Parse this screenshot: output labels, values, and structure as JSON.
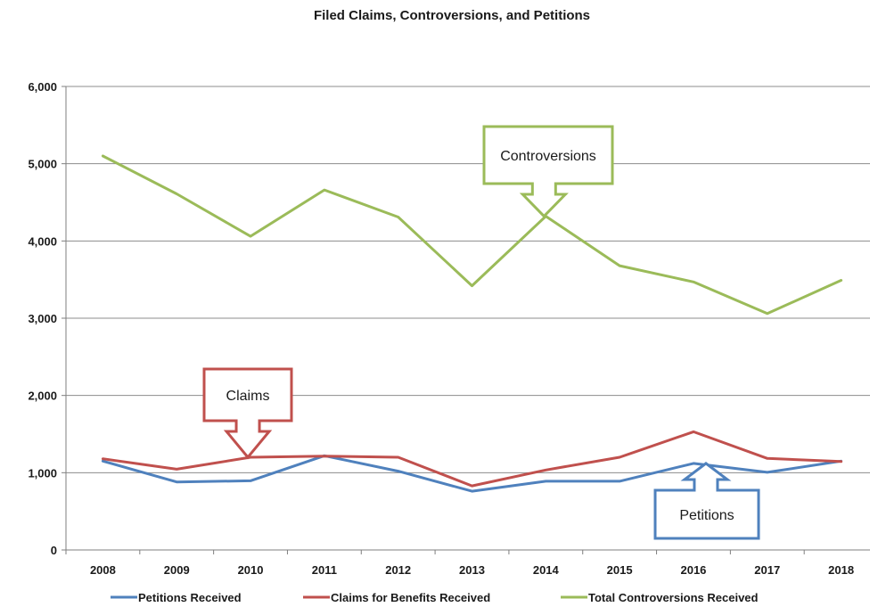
{
  "chart_data": {
    "type": "line",
    "title": "Filed Claims, Controversions, and Petitions",
    "xlabel": "",
    "ylabel": "",
    "ylim": [
      0,
      6000
    ],
    "yticks": [
      "0",
      "1,000",
      "2,000",
      "3,000",
      "4,000",
      "5,000",
      "6,000"
    ],
    "categories": [
      "2008",
      "2009",
      "2010",
      "2011",
      "2012",
      "2013",
      "2014",
      "2015",
      "2016",
      "2017",
      "2018"
    ],
    "grid": true,
    "legend_position": "bottom",
    "series": [
      {
        "name": "Petitions Received",
        "color": "#4f81bd",
        "values": [
          1150,
          880,
          895,
          1220,
          1020,
          760,
          890,
          890,
          1120,
          1005,
          1150
        ]
      },
      {
        "name": "Claims for Benefits Received",
        "color": "#c0504d",
        "values": [
          1180,
          1045,
          1200,
          1215,
          1200,
          830,
          1035,
          1200,
          1530,
          1185,
          1145
        ]
      },
      {
        "name": "Total Controversions Received",
        "color": "#9bbb59",
        "values": [
          5100,
          4610,
          4060,
          4660,
          4310,
          3420,
          4320,
          3680,
          3470,
          3060,
          3490
        ]
      }
    ],
    "annotations": [
      {
        "text": "Controversions",
        "series": "Total Controversions Received",
        "color": "#9bbb59"
      },
      {
        "text": "Claims",
        "series": "Claims for Benefits Received",
        "color": "#c0504d"
      },
      {
        "text": "Petitions",
        "series": "Petitions Received",
        "color": "#4f81bd"
      }
    ]
  }
}
